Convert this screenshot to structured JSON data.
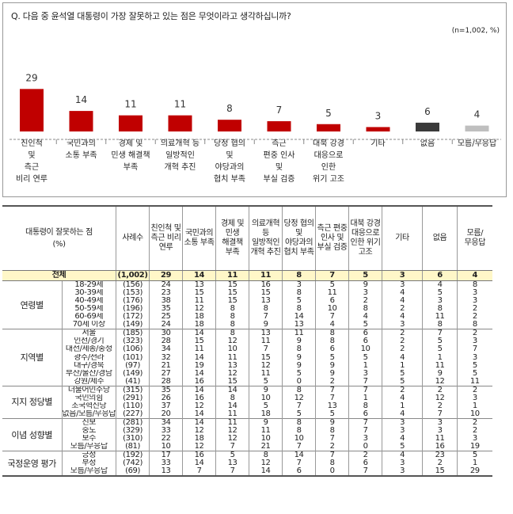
{
  "chart_data": {
    "type": "bar",
    "title": "Q. 다음 중 윤석열 대통령이 가장 잘못하고 있는 점은 무엇이라고 생각하십니까?",
    "note": "(n=1,002, %)",
    "categories": [
      [
        "친인척",
        "및",
        "측근",
        "비리 연루"
      ],
      [
        "국민과의",
        "소통 부족"
      ],
      [
        "경제 및",
        "민생 해결책",
        "부족"
      ],
      [
        "의료개혁 등",
        "일방적인",
        "개혁 추진"
      ],
      [
        "당정 협의",
        "및",
        "야당과의",
        "협치 부족"
      ],
      [
        "측근",
        "편중 인사",
        "및",
        "부실 검증"
      ],
      [
        "대북 강경",
        "대응으로",
        "인한",
        "위기 고조"
      ],
      [
        "기타"
      ],
      [
        "없음"
      ],
      [
        "모름/무응답"
      ]
    ],
    "values": [
      29,
      14,
      11,
      11,
      8,
      7,
      5,
      3,
      6,
      4
    ],
    "colors": [
      "#c00000",
      "#c00000",
      "#c00000",
      "#c00000",
      "#c00000",
      "#c00000",
      "#c00000",
      "#c00000",
      "#3a3a3a",
      "#bfbfbf"
    ]
  },
  "table": {
    "header_label": [
      "대통령이 잘못하는 점",
      "(%)"
    ],
    "col_sample": "사례수",
    "columns": [
      "친인척 및 측근 비리 연루",
      "국민과의 소통 부족",
      "경제 및 민생 해결책 부족",
      "의료개혁 등 일방적인 개혁 추진",
      "당정 협의 및 야당과의 협치 부족",
      "측근 편중 인사 및 부실 검증",
      "대북 강경 대응으로 인한 위기 고조",
      "기타",
      "없음",
      "모름/ 무응답"
    ],
    "total": {
      "label": "전체",
      "n": "(1,002)",
      "values": [
        "29",
        "14",
        "11",
        "11",
        "8",
        "7",
        "5",
        "3",
        "6",
        "4"
      ]
    },
    "groups": [
      {
        "name": "연령별",
        "rows": [
          {
            "label": "18-29세",
            "n": "(156)",
            "values": [
              "24",
              "13",
              "15",
              "16",
              "3",
              "5",
              "9",
              "3",
              "4",
              "8"
            ]
          },
          {
            "label": "30-39세",
            "n": "(153)",
            "values": [
              "23",
              "15",
              "15",
              "15",
              "8",
              "11",
              "3",
              "4",
              "5",
              "3"
            ]
          },
          {
            "label": "40-49세",
            "n": "(176)",
            "values": [
              "38",
              "11",
              "15",
              "13",
              "5",
              "6",
              "2",
              "4",
              "3",
              "3"
            ]
          },
          {
            "label": "50-59세",
            "n": "(196)",
            "values": [
              "35",
              "12",
              "8",
              "8",
              "8",
              "10",
              "8",
              "2",
              "8",
              "2"
            ]
          },
          {
            "label": "60-69세",
            "n": "(172)",
            "values": [
              "25",
              "18",
              "8",
              "7",
              "14",
              "7",
              "4",
              "4",
              "11",
              "2"
            ]
          },
          {
            "label": "70세 이상",
            "n": "(149)",
            "values": [
              "24",
              "18",
              "8",
              "9",
              "13",
              "4",
              "5",
              "3",
              "8",
              "8"
            ]
          }
        ]
      },
      {
        "name": "지역별",
        "rows": [
          {
            "label": "서울",
            "n": "(185)",
            "values": [
              "30",
              "14",
              "8",
              "13",
              "11",
              "8",
              "6",
              "2",
              "7",
              "2"
            ]
          },
          {
            "label": "인천/경기",
            "n": "(323)",
            "values": [
              "28",
              "15",
              "12",
              "11",
              "9",
              "8",
              "6",
              "2",
              "5",
              "3"
            ]
          },
          {
            "label": "대전/세종/충청",
            "n": "(106)",
            "values": [
              "34",
              "11",
              "10",
              "7",
              "8",
              "6",
              "10",
              "2",
              "5",
              "7"
            ]
          },
          {
            "label": "광주/전라",
            "n": "(101)",
            "values": [
              "32",
              "14",
              "11",
              "15",
              "9",
              "5",
              "5",
              "4",
              "1",
              "3"
            ]
          },
          {
            "label": "대구/경북",
            "n": "(97)",
            "values": [
              "21",
              "19",
              "13",
              "12",
              "9",
              "9",
              "1",
              "1",
              "11",
              "5"
            ]
          },
          {
            "label": "부산/울산/경남",
            "n": "(149)",
            "values": [
              "27",
              "14",
              "12",
              "11",
              "5",
              "9",
              "3",
              "5",
              "9",
              "5"
            ]
          },
          {
            "label": "강원/제주",
            "n": "(41)",
            "values": [
              "28",
              "16",
              "15",
              "5",
              "0",
              "2",
              "7",
              "5",
              "12",
              "11"
            ]
          }
        ]
      },
      {
        "name": "지지 정당별",
        "rows": [
          {
            "label": "더불어민주당",
            "n": "(315)",
            "values": [
              "35",
              "14",
              "14",
              "9",
              "8",
              "7",
              "7",
              "2",
              "2",
              "2"
            ]
          },
          {
            "label": "국민의힘",
            "n": "(291)",
            "values": [
              "26",
              "16",
              "8",
              "10",
              "12",
              "7",
              "1",
              "4",
              "12",
              "3"
            ]
          },
          {
            "label": "조국혁신당",
            "n": "(110)",
            "values": [
              "37",
              "12",
              "14",
              "5",
              "7",
              "13",
              "8",
              "1",
              "2",
              "1"
            ]
          },
          {
            "label": "없음/모름/무응답",
            "n": "(227)",
            "values": [
              "20",
              "14",
              "11",
              "18",
              "5",
              "5",
              "6",
              "4",
              "7",
              "10"
            ]
          }
        ]
      },
      {
        "name": "이념 성향별",
        "rows": [
          {
            "label": "진보",
            "n": "(281)",
            "values": [
              "34",
              "14",
              "11",
              "9",
              "8",
              "9",
              "7",
              "3",
              "3",
              "2"
            ]
          },
          {
            "label": "중도",
            "n": "(329)",
            "values": [
              "33",
              "12",
              "12",
              "11",
              "8",
              "8",
              "7",
              "3",
              "3",
              "2"
            ]
          },
          {
            "label": "보수",
            "n": "(310)",
            "values": [
              "22",
              "18",
              "12",
              "10",
              "10",
              "7",
              "3",
              "4",
              "11",
              "3"
            ]
          },
          {
            "label": "모름/무응답",
            "n": "(81)",
            "values": [
              "10",
              "12",
              "7",
              "21",
              "7",
              "2",
              "0",
              "5",
              "16",
              "19"
            ]
          }
        ]
      },
      {
        "name": "국정운영 평가",
        "rows": [
          {
            "label": "긍정",
            "n": "(192)",
            "values": [
              "17",
              "16",
              "5",
              "8",
              "14",
              "7",
              "2",
              "4",
              "23",
              "5"
            ]
          },
          {
            "label": "부정",
            "n": "(742)",
            "values": [
              "33",
              "14",
              "13",
              "12",
              "7",
              "8",
              "6",
              "3",
              "2",
              "1"
            ]
          },
          {
            "label": "모름/무응답",
            "n": "(69)",
            "values": [
              "13",
              "7",
              "7",
              "14",
              "6",
              "0",
              "7",
              "3",
              "15",
              "29"
            ]
          }
        ]
      }
    ]
  }
}
